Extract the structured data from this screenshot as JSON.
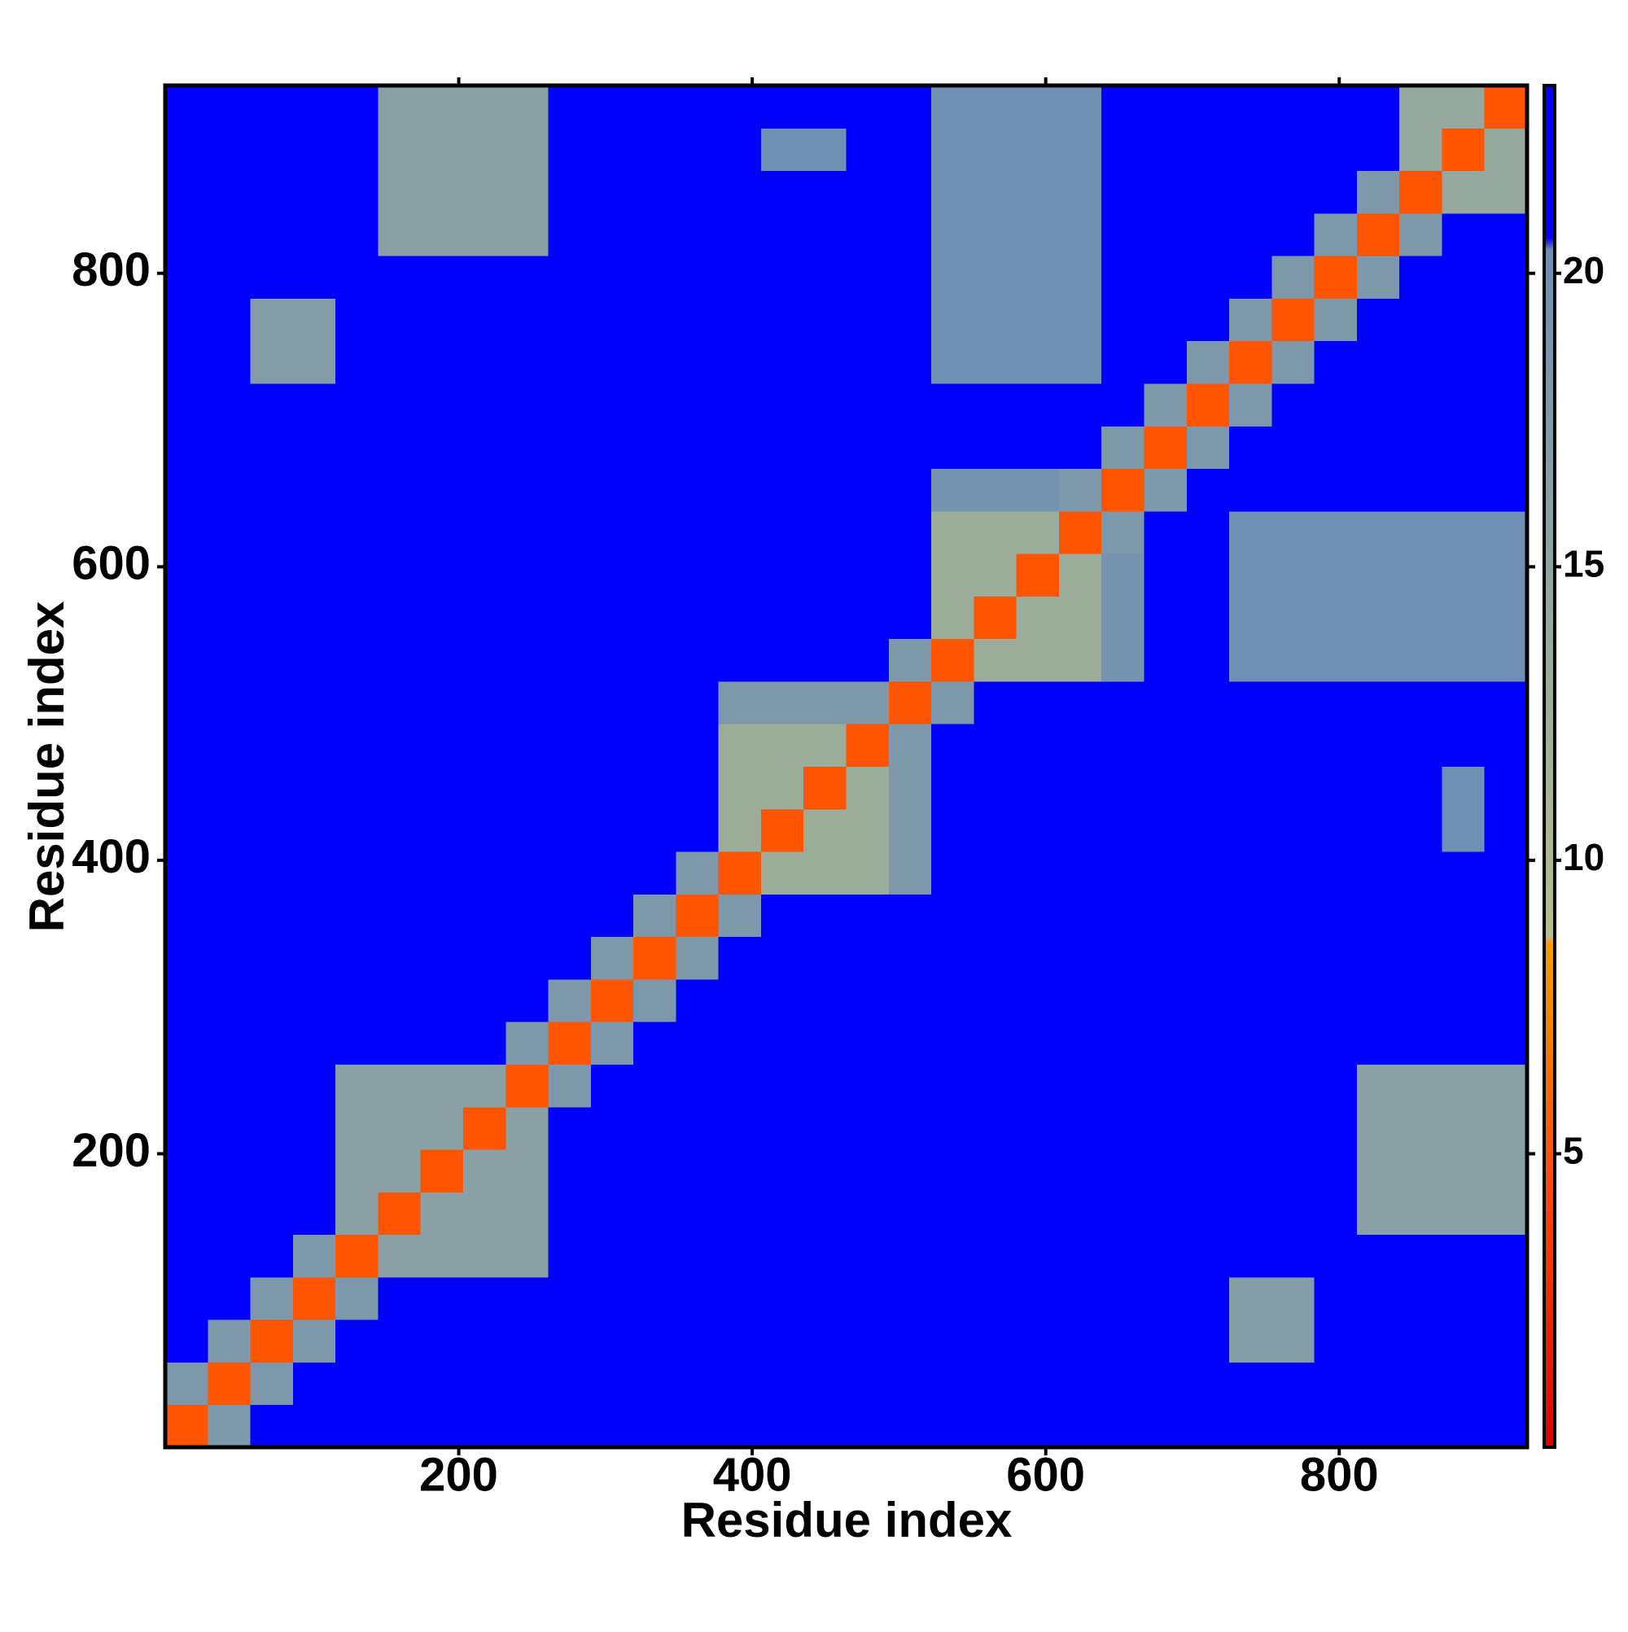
{
  "chart_data": {
    "type": "heatmap",
    "xlabel": "Residue index",
    "ylabel": "Residue index",
    "bins": [
      0,
      29,
      58,
      87,
      116,
      145,
      174,
      203,
      232,
      261,
      290,
      319,
      348,
      377,
      406,
      435,
      464,
      493,
      522,
      551,
      580,
      609,
      638,
      667,
      696,
      725,
      754,
      783,
      812,
      841,
      870,
      899,
      928
    ],
    "values": [
      [
        5,
        18,
        22,
        22,
        22,
        22,
        22,
        22,
        22,
        22,
        22,
        22,
        22,
        22,
        22,
        22,
        22,
        22,
        22,
        22,
        22,
        22,
        22,
        22,
        22,
        22,
        22,
        22,
        22,
        22,
        22,
        22
      ],
      [
        18,
        5,
        18,
        22,
        22,
        22,
        22,
        22,
        22,
        22,
        22,
        22,
        22,
        22,
        22,
        22,
        22,
        22,
        22,
        22,
        22,
        22,
        22,
        22,
        22,
        22,
        22,
        22,
        22,
        22,
        22,
        22
      ],
      [
        22,
        18,
        5,
        18,
        22,
        22,
        22,
        22,
        22,
        22,
        22,
        22,
        22,
        22,
        22,
        22,
        22,
        22,
        22,
        22,
        22,
        22,
        22,
        22,
        22,
        17,
        17,
        22,
        22,
        22,
        22,
        22
      ],
      [
        22,
        22,
        18,
        5,
        18,
        22,
        22,
        22,
        22,
        22,
        22,
        22,
        22,
        22,
        22,
        22,
        22,
        22,
        22,
        22,
        22,
        22,
        22,
        22,
        22,
        17,
        17,
        22,
        22,
        22,
        22,
        22
      ],
      [
        22,
        22,
        22,
        18,
        5,
        16,
        16,
        16,
        16,
        22,
        22,
        22,
        22,
        22,
        22,
        22,
        22,
        22,
        22,
        22,
        22,
        22,
        22,
        22,
        22,
        22,
        22,
        22,
        22,
        22,
        22,
        22
      ],
      [
        22,
        22,
        22,
        22,
        16,
        5,
        16,
        16,
        16,
        22,
        22,
        22,
        22,
        22,
        22,
        22,
        22,
        22,
        22,
        22,
        22,
        22,
        22,
        22,
        22,
        22,
        22,
        22,
        16,
        16,
        16,
        16
      ],
      [
        22,
        22,
        22,
        22,
        16,
        16,
        5,
        16,
        16,
        22,
        22,
        22,
        22,
        22,
        22,
        22,
        22,
        22,
        22,
        22,
        22,
        22,
        22,
        22,
        22,
        22,
        22,
        22,
        16,
        16,
        16,
        16
      ],
      [
        22,
        22,
        22,
        22,
        16,
        16,
        16,
        5,
        16,
        22,
        22,
        22,
        22,
        22,
        21,
        21,
        22,
        22,
        22,
        22,
        22,
        22,
        22,
        22,
        22,
        22,
        22,
        22,
        16,
        16,
        16,
        16
      ],
      [
        22,
        22,
        22,
        22,
        16,
        16,
        16,
        16,
        5,
        18,
        22,
        22,
        22,
        22,
        21,
        21,
        22,
        22,
        22,
        22,
        22,
        22,
        22,
        22,
        22,
        22,
        22,
        22,
        16,
        16,
        16,
        16
      ],
      [
        22,
        22,
        22,
        22,
        22,
        22,
        22,
        22,
        18,
        5,
        18,
        22,
        22,
        22,
        22,
        22,
        22,
        22,
        22,
        22,
        22,
        22,
        22,
        22,
        22,
        22,
        22,
        22,
        22,
        22,
        22,
        22
      ],
      [
        22,
        22,
        22,
        22,
        22,
        22,
        22,
        22,
        22,
        18,
        5,
        18,
        22,
        22,
        22,
        22,
        22,
        22,
        22,
        22,
        22,
        22,
        22,
        22,
        22,
        22,
        22,
        22,
        22,
        22,
        22,
        22
      ],
      [
        22,
        22,
        22,
        22,
        22,
        22,
        22,
        22,
        22,
        22,
        18,
        5,
        18,
        22,
        22,
        22,
        22,
        22,
        22,
        22,
        22,
        22,
        22,
        22,
        22,
        22,
        22,
        22,
        22,
        22,
        22,
        22
      ],
      [
        22,
        22,
        22,
        22,
        22,
        22,
        22,
        22,
        22,
        22,
        22,
        18,
        5,
        18,
        22,
        22,
        22,
        22,
        22,
        22,
        22,
        22,
        22,
        22,
        22,
        22,
        22,
        22,
        22,
        22,
        22,
        22
      ],
      [
        22,
        22,
        22,
        22,
        22,
        22,
        22,
        22,
        22,
        22,
        22,
        22,
        18,
        5,
        13,
        13,
        13,
        18,
        22,
        22,
        22,
        22,
        22,
        22,
        22,
        22,
        22,
        22,
        22,
        22,
        22,
        22
      ],
      [
        22,
        22,
        22,
        22,
        22,
        22,
        22,
        21,
        21,
        22,
        22,
        22,
        22,
        13,
        5,
        13,
        13,
        18,
        22,
        22,
        22,
        22,
        22,
        22,
        22,
        22,
        22,
        22,
        22,
        22,
        20,
        22
      ],
      [
        22,
        22,
        22,
        22,
        22,
        22,
        22,
        21,
        21,
        22,
        22,
        22,
        22,
        13,
        13,
        5,
        13,
        18,
        22,
        22,
        22,
        22,
        22,
        22,
        22,
        22,
        22,
        22,
        22,
        22,
        20,
        22
      ],
      [
        22,
        22,
        22,
        22,
        22,
        22,
        22,
        22,
        22,
        22,
        22,
        22,
        22,
        13,
        13,
        13,
        5,
        18,
        22,
        22,
        22,
        22,
        22,
        22,
        22,
        22,
        22,
        22,
        22,
        22,
        22,
        22
      ],
      [
        22,
        22,
        22,
        22,
        22,
        22,
        22,
        22,
        22,
        22,
        22,
        22,
        22,
        18,
        18,
        18,
        18,
        5,
        18,
        22,
        22,
        22,
        22,
        22,
        22,
        22,
        22,
        22,
        22,
        22,
        22,
        22
      ],
      [
        22,
        22,
        22,
        22,
        22,
        22,
        22,
        22,
        22,
        22,
        22,
        22,
        22,
        22,
        22,
        22,
        22,
        18,
        5,
        13,
        13,
        13,
        19,
        22,
        22,
        20,
        20,
        20,
        20,
        20,
        20,
        20
      ],
      [
        22,
        22,
        22,
        22,
        22,
        22,
        22,
        22,
        22,
        22,
        22,
        22,
        22,
        22,
        22,
        22,
        22,
        22,
        13,
        5,
        13,
        13,
        19,
        22,
        22,
        20,
        20,
        20,
        20,
        20,
        20,
        20
      ],
      [
        22,
        22,
        22,
        22,
        22,
        22,
        22,
        22,
        22,
        22,
        22,
        22,
        22,
        22,
        22,
        22,
        22,
        22,
        13,
        13,
        5,
        13,
        19,
        22,
        22,
        20,
        20,
        20,
        20,
        20,
        20,
        20
      ],
      [
        22,
        22,
        22,
        22,
        22,
        22,
        22,
        22,
        22,
        22,
        22,
        22,
        22,
        22,
        22,
        22,
        22,
        22,
        13,
        13,
        13,
        5,
        18,
        22,
        22,
        20,
        20,
        20,
        20,
        20,
        20,
        20
      ],
      [
        22,
        22,
        22,
        22,
        22,
        22,
        22,
        22,
        22,
        22,
        22,
        22,
        22,
        22,
        22,
        22,
        22,
        22,
        19,
        19,
        19,
        18,
        5,
        18,
        22,
        22,
        22,
        22,
        22,
        22,
        22,
        22
      ],
      [
        22,
        22,
        22,
        22,
        22,
        22,
        22,
        22,
        22,
        22,
        22,
        22,
        22,
        22,
        22,
        22,
        22,
        22,
        22,
        22,
        22,
        22,
        18,
        5,
        18,
        22,
        22,
        22,
        22,
        22,
        22,
        22
      ],
      [
        22,
        22,
        22,
        22,
        22,
        22,
        22,
        22,
        22,
        22,
        22,
        22,
        22,
        22,
        22,
        22,
        22,
        22,
        22,
        22,
        22,
        22,
        22,
        18,
        5,
        18,
        22,
        22,
        22,
        22,
        22,
        22
      ],
      [
        22,
        22,
        17,
        17,
        22,
        22,
        22,
        22,
        22,
        22,
        22,
        22,
        22,
        22,
        22,
        22,
        22,
        22,
        20,
        20,
        20,
        20,
        22,
        22,
        18,
        5,
        18,
        22,
        22,
        22,
        22,
        22
      ],
      [
        22,
        22,
        17,
        17,
        22,
        22,
        22,
        22,
        22,
        22,
        22,
        22,
        22,
        22,
        22,
        22,
        22,
        22,
        20,
        20,
        20,
        20,
        22,
        22,
        22,
        18,
        5,
        18,
        22,
        22,
        22,
        22
      ],
      [
        22,
        22,
        22,
        22,
        22,
        22,
        22,
        22,
        22,
        22,
        22,
        22,
        22,
        22,
        22,
        22,
        22,
        22,
        20,
        20,
        20,
        20,
        22,
        22,
        22,
        22,
        18,
        5,
        18,
        22,
        22,
        22
      ],
      [
        22,
        22,
        22,
        22,
        22,
        16,
        16,
        16,
        16,
        22,
        22,
        22,
        22,
        22,
        22,
        22,
        22,
        22,
        20,
        20,
        20,
        20,
        22,
        22,
        22,
        22,
        22,
        18,
        5,
        18,
        22,
        22
      ],
      [
        22,
        22,
        22,
        22,
        22,
        16,
        16,
        16,
        16,
        22,
        22,
        22,
        22,
        22,
        22,
        22,
        22,
        22,
        20,
        20,
        20,
        20,
        22,
        22,
        22,
        22,
        22,
        22,
        18,
        5,
        14,
        14
      ],
      [
        22,
        22,
        22,
        22,
        22,
        16,
        16,
        16,
        16,
        22,
        22,
        22,
        22,
        22,
        20,
        20,
        22,
        22,
        20,
        20,
        20,
        20,
        22,
        22,
        22,
        22,
        22,
        22,
        22,
        14,
        5,
        14
      ],
      [
        22,
        22,
        22,
        22,
        22,
        16,
        16,
        16,
        16,
        22,
        22,
        22,
        22,
        22,
        22,
        22,
        22,
        22,
        20,
        20,
        20,
        20,
        22,
        22,
        22,
        22,
        22,
        22,
        22,
        14,
        14,
        5
      ]
    ],
    "xlim": [
      0,
      928
    ],
    "ylim": [
      0,
      928
    ],
    "xticks": [
      200,
      400,
      600,
      800
    ],
    "yticks": [
      200,
      400,
      600,
      800
    ],
    "colorscale": [
      [
        0,
        "#e00000"
      ],
      [
        4,
        "#ff4000"
      ],
      [
        8.6,
        "#ff9a00"
      ],
      [
        8.7,
        "#b5bf8a"
      ],
      [
        20.4,
        "#6e8db4"
      ],
      [
        20.6,
        "#0000ff"
      ],
      [
        23.2,
        "#0000ff"
      ]
    ],
    "zlim": [
      0,
      23.2
    ],
    "zticks": [
      5,
      10,
      15,
      20
    ]
  }
}
